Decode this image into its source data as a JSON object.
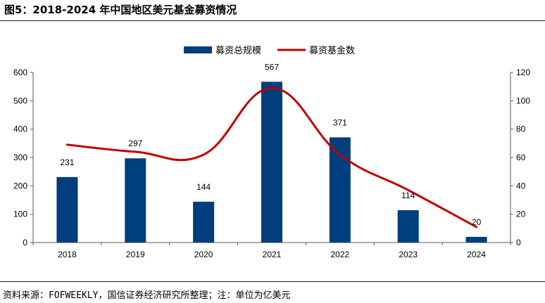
{
  "title": "图5：2018-2024 年中国地区美元基金募资情况",
  "source": "资料来源：FOFWEEKLY，国信证券经济研究所整理；注：单位为亿美元",
  "chart_data": {
    "type": "bar",
    "categories": [
      "2018",
      "2019",
      "2020",
      "2021",
      "2022",
      "2023",
      "2024"
    ],
    "series": [
      {
        "name": "募资总规模",
        "type": "bar",
        "axis": "left",
        "values": [
          231,
          297,
          144,
          567,
          371,
          114,
          20
        ],
        "color": "#003e7e"
      },
      {
        "name": "募资基金数",
        "type": "line",
        "axis": "right",
        "values": [
          69,
          64,
          62,
          109,
          62,
          37,
          11
        ],
        "color": "#c00000"
      }
    ],
    "data_labels": [
      "231",
      "297",
      "144",
      "567",
      "371",
      "114",
      "20"
    ],
    "ylim_left": [
      0,
      600
    ],
    "yticks_left": [
      "0",
      "100",
      "200",
      "300",
      "400",
      "500",
      "600"
    ],
    "ylim_right": [
      0,
      120
    ],
    "yticks_right": [
      "0",
      "20",
      "40",
      "60",
      "80",
      "100",
      "120"
    ],
    "legend_position": "top-center",
    "grid": false
  }
}
